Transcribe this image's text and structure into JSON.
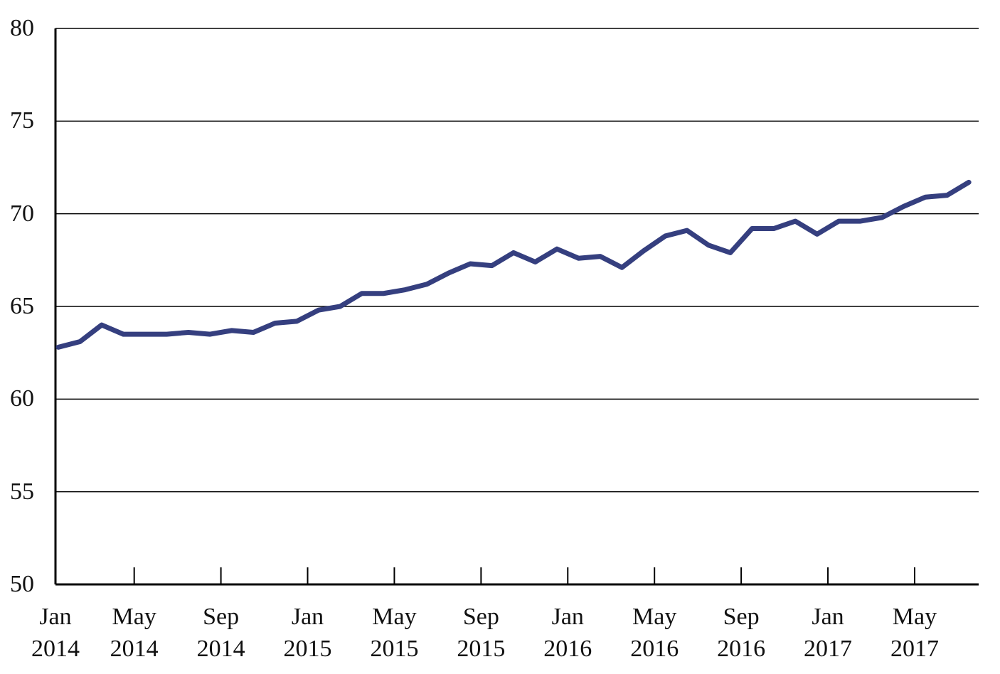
{
  "chart_data": {
    "type": "line",
    "categories": [
      "Jan 2014",
      null,
      null,
      null,
      "May 2014",
      null,
      null,
      null,
      "Sep 2014",
      null,
      null,
      null,
      "Jan 2015",
      null,
      null,
      null,
      "May 2015",
      null,
      null,
      null,
      "Sep 2015",
      null,
      null,
      null,
      "Jan 2016",
      null,
      null,
      null,
      "May 2016",
      null,
      null,
      null,
      "Sep 2016",
      null,
      null,
      null,
      "Jan 2017",
      null,
      null,
      null,
      "May 2017",
      null,
      null
    ],
    "series": [
      {
        "color": "#353f7f",
        "values": [
          62.8,
          63.1,
          64.0,
          63.5,
          63.5,
          63.5,
          63.6,
          63.5,
          63.7,
          63.6,
          64.1,
          64.2,
          64.8,
          65.0,
          65.7,
          65.7,
          65.9,
          66.2,
          66.8,
          67.3,
          67.2,
          67.9,
          67.4,
          68.1,
          67.6,
          67.7,
          67.1,
          68.0,
          68.8,
          69.1,
          68.3,
          67.9,
          69.2,
          69.2,
          69.6,
          68.9,
          69.6,
          69.6,
          69.8,
          70.4,
          70.9,
          71.0,
          71.7
        ]
      }
    ],
    "ylim": [
      50,
      80
    ],
    "yticks": [
      50,
      55,
      60,
      65,
      70,
      75,
      80
    ],
    "grid": true
  }
}
